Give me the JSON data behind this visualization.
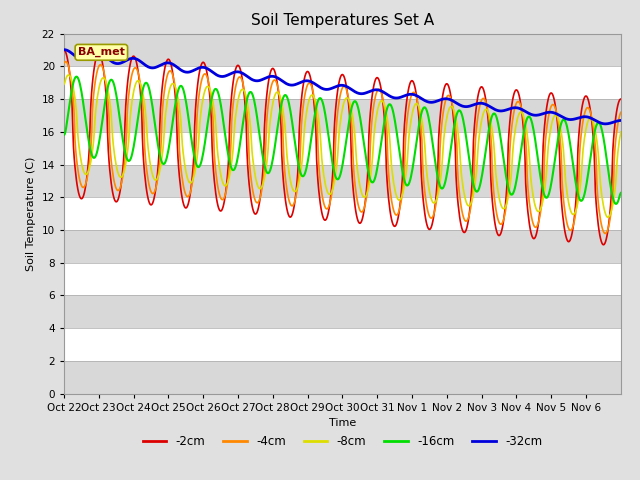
{
  "title": "Soil Temperatures Set A",
  "xlabel": "Time",
  "ylabel": "Soil Temperature (C)",
  "ylim": [
    0,
    22
  ],
  "yticks": [
    0,
    2,
    4,
    6,
    8,
    10,
    12,
    14,
    16,
    18,
    20,
    22
  ],
  "annotation_text": "BA_met",
  "bg_color": "#e0e0e0",
  "plot_bg_color": "#e0e0e0",
  "series": {
    "-2cm": {
      "color": "#dd0000",
      "lw": 1.2
    },
    "-4cm": {
      "color": "#ff8800",
      "lw": 1.2
    },
    "-8cm": {
      "color": "#dddd00",
      "lw": 1.2
    },
    "-16cm": {
      "color": "#00dd00",
      "lw": 1.5
    },
    "-32cm": {
      "color": "#0000dd",
      "lw": 2.0
    }
  },
  "xtick_labels": [
    "Oct 22",
    "Oct 23",
    "Oct 24",
    "Oct 25",
    "Oct 26",
    "Oct 27",
    "Oct 28",
    "Oct 29",
    "Oct 30",
    "Oct 31",
    "Nov 1",
    "Nov 2",
    "Nov 3",
    "Nov 4",
    "Nov 5",
    "Nov 6"
  ],
  "n_days": 16,
  "legend_labels": [
    "-2cm",
    "-4cm",
    "-8cm",
    "-16cm",
    "-32cm"
  ],
  "legend_colors": [
    "#dd0000",
    "#ff8800",
    "#dddd00",
    "#00dd00",
    "#0000dd"
  ],
  "band_colors": [
    "#d8d8d8",
    "#ffffff"
  ],
  "band_ranges": [
    [
      0,
      2
    ],
    [
      2,
      4
    ],
    [
      4,
      6
    ],
    [
      6,
      8
    ],
    [
      8,
      10
    ],
    [
      10,
      12
    ],
    [
      12,
      14
    ],
    [
      14,
      16
    ],
    [
      16,
      18
    ],
    [
      18,
      20
    ],
    [
      20,
      22
    ]
  ]
}
